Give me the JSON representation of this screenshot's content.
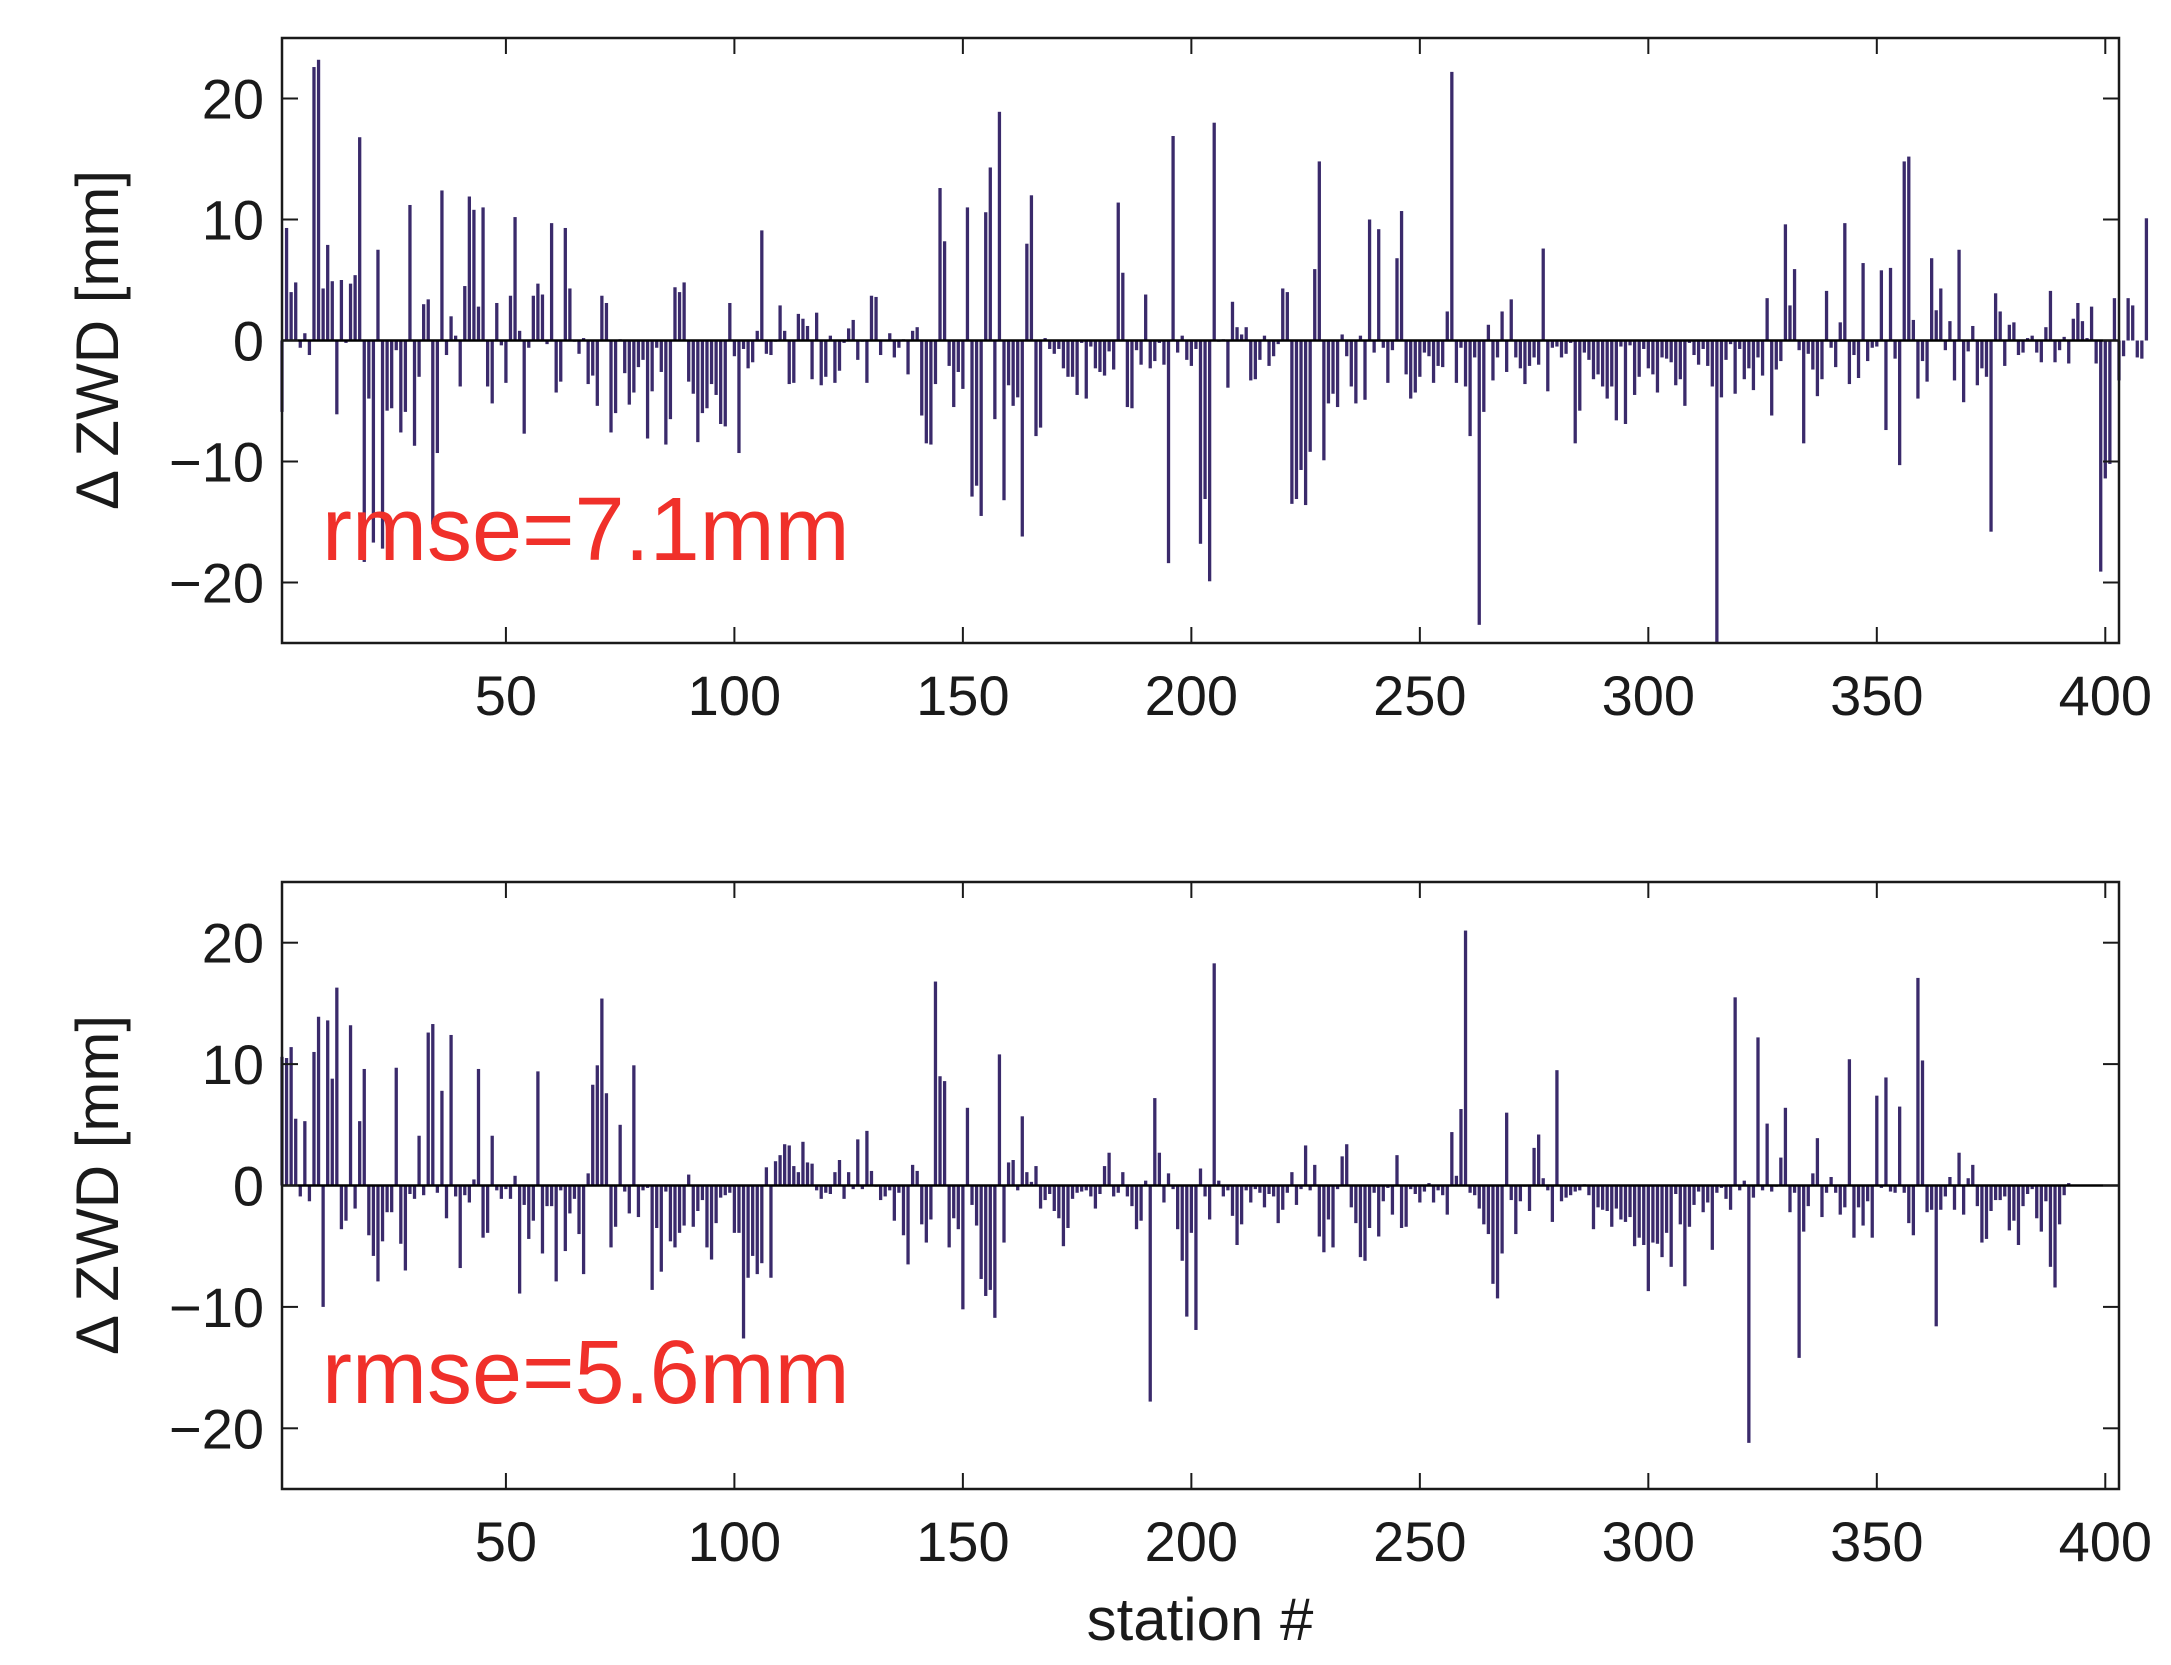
{
  "chart_data": [
    {
      "type": "bar",
      "panel": "top",
      "ylabel": "Δ ZWD [mm]",
      "xlabel": "",
      "xlim": [
        1,
        403
      ],
      "ylim": [
        -25,
        25
      ],
      "xticks": [
        50,
        100,
        150,
        200,
        250,
        300,
        350,
        400
      ],
      "yticks": [
        -20,
        -10,
        0,
        10,
        20
      ],
      "annotation": "rmse=7.1mm",
      "bar_color": "#3a2a6b",
      "annotation_color": "#f0302a",
      "x_start": 1,
      "values": [
        -5.9,
        9.3,
        4.0,
        4.8,
        -0.6,
        0.6,
        -1.2,
        22.6,
        23.2,
        4.3,
        7.9,
        4.9,
        -6.1,
        5.0,
        -0.2,
        4.7,
        5.4,
        16.8,
        -18.3,
        -4.8,
        -16.7,
        7.5,
        -17.2,
        -5.8,
        -5.6,
        -0.8,
        -7.6,
        -5.9,
        11.2,
        -8.7,
        -3.0,
        3.0,
        3.4,
        -15.2,
        -9.3,
        12.4,
        -1.2,
        2.0,
        0.4,
        -3.8,
        4.5,
        11.9,
        10.8,
        2.8,
        11.0,
        -3.8,
        -5.2,
        3.1,
        -0.4,
        -3.5,
        3.7,
        10.2,
        0.8,
        -7.7,
        -0.6,
        3.7,
        4.7,
        3.8,
        -0.3,
        9.7,
        -4.3,
        -3.4,
        9.3,
        4.3,
        -0.1,
        -1.1,
        0.2,
        -3.6,
        -2.9,
        -5.4,
        3.7,
        3.1,
        -7.6,
        -6.0,
        0.1,
        -2.7,
        -5.3,
        -4.3,
        -2.2,
        -1.6,
        -8.1,
        -4.2,
        -0.6,
        -2.6,
        -8.6,
        -6.5,
        4.4,
        4.0,
        4.8,
        -3.4,
        -4.4,
        -8.4,
        -6.0,
        -5.6,
        -3.6,
        -4.5,
        -6.9,
        -7.1,
        3.1,
        -1.3,
        -9.3,
        -0.7,
        -2.3,
        -1.8,
        0.8,
        9.1,
        -1.1,
        -1.2,
        -0.1,
        2.9,
        0.8,
        -3.6,
        -3.5,
        2.2,
        1.8,
        1.2,
        -3.2,
        2.3,
        -3.7,
        -3.0,
        0.4,
        -3.5,
        -2.5,
        -0.2,
        1.0,
        1.7,
        -1.6,
        -0.1,
        -3.5,
        3.7,
        3.6,
        -1.2,
        0.0,
        0.6,
        -1.4,
        -0.6,
        0.1,
        -2.8,
        0.8,
        1.1,
        -6.2,
        -8.5,
        -8.6,
        -3.6,
        12.6,
        8.2,
        -2.1,
        -5.5,
        -2.6,
        -4.0,
        11.0,
        -12.9,
        -12.0,
        -14.5,
        10.6,
        14.3,
        -6.5,
        18.9,
        -13.2,
        -3.7,
        -5.4,
        -4.7,
        -16.2,
        8.0,
        12.0,
        -7.9,
        -7.2,
        0.2,
        -0.7,
        -1.1,
        -0.7,
        -2.3,
        -3.0,
        -3.0,
        -4.5,
        -0.2,
        -4.8,
        -0.5,
        -2.3,
        -2.6,
        -2.9,
        -0.9,
        -2.4,
        11.4,
        5.6,
        -5.5,
        -5.6,
        -0.8,
        -2.0,
        3.8,
        -2.3,
        -1.7,
        -0.2,
        -2.0,
        -18.4,
        16.9,
        -1.0,
        0.4,
        -1.6,
        -2.1,
        -0.7,
        -16.8,
        -13.1,
        -19.9,
        18.0,
        -0.1,
        0.1,
        -3.9,
        3.2,
        1.1,
        0.5,
        1.1,
        -3.3,
        -3.2,
        -1.6,
        0.4,
        -2.1,
        -1.3,
        -0.3,
        4.3,
        4.0,
        -13.5,
        -13.1,
        -10.7,
        -13.6,
        -9.2,
        5.9,
        14.8,
        -9.9,
        -5.2,
        -4.4,
        -5.5,
        0.5,
        -1.3,
        -3.8,
        -5.2,
        0.4,
        -4.9,
        10.0,
        -1.0,
        9.2,
        -0.6,
        -3.5,
        -0.8,
        6.8,
        10.7,
        -2.8,
        -4.8,
        -4.3,
        -3.0,
        -1.0,
        -1.3,
        -3.5,
        -2.1,
        -2.2,
        2.4,
        22.2,
        -3.5,
        -0.6,
        -3.8,
        -7.9,
        -1.4,
        -23.5,
        -5.9,
        1.3,
        -3.3,
        -1.4,
        2.4,
        -2.6,
        3.4,
        -1.4,
        -2.3,
        -3.6,
        -2.1,
        -1.4,
        -2.0,
        7.6,
        -4.2,
        -0.6,
        -0.5,
        -1.4,
        -1.1,
        -0.2,
        -8.5,
        -5.8,
        -1.0,
        -1.6,
        -3.2,
        -2.8,
        -3.8,
        -4.8,
        -3.8,
        -6.6,
        -0.5,
        -6.9,
        -0.4,
        -4.5,
        -3.0,
        -0.7,
        -2.3,
        -2.8,
        -4.3,
        -1.4,
        -1.5,
        -1.8,
        -3.7,
        -3.2,
        -5.4,
        -0.2,
        -1.2,
        -2.0,
        -0.7,
        -2.1,
        -3.8,
        -26.2,
        -4.7,
        -1.6,
        -0.3,
        -4.4,
        -0.7,
        -3.2,
        -2.3,
        -4.1,
        -1.4,
        -2.9,
        3.5,
        -6.2,
        -2.4,
        -1.7,
        9.6,
        2.9,
        5.9,
        -0.8,
        -8.5,
        -1.1,
        -2.4,
        -4.6,
        -3.2,
        4.1,
        -0.6,
        -2.2,
        1.5,
        9.7,
        -3.6,
        -1.2,
        -3.1,
        6.4,
        -1.7,
        -0.6,
        -0.5,
        5.8,
        -7.4,
        6.0,
        -1.5,
        -10.3,
        14.8,
        15.2,
        1.7,
        -4.8,
        -1.7,
        -3.4,
        6.8,
        2.5,
        4.3,
        -0.8,
        1.6,
        -3.3,
        7.5,
        -5.1,
        -0.9,
        1.2,
        -3.7,
        -2.3,
        -3.0,
        -15.8,
        3.9,
        2.4,
        -2.1,
        1.3,
        1.5,
        -1.2,
        -1.0,
        0.2,
        0.4,
        -1.0,
        -1.8,
        1.1,
        4.1,
        -1.8,
        -0.8,
        0.3,
        -1.9,
        1.8,
        3.1,
        1.6,
        0.2,
        2.8,
        -1.9,
        -19.1,
        -11.4,
        -10.2,
        3.5,
        -3.3,
        -1.3,
        3.5,
        2.9,
        -1.4,
        -1.5,
        10.1
      ]
    },
    {
      "type": "bar",
      "panel": "bottom",
      "ylabel": "Δ ZWD [mm]",
      "xlabel": "station #",
      "xlim": [
        1,
        403
      ],
      "ylim": [
        -25,
        25
      ],
      "xticks": [
        50,
        100,
        150,
        200,
        250,
        300,
        350,
        400
      ],
      "yticks": [
        -20,
        -10,
        0,
        10,
        20
      ],
      "annotation": "rmse=5.6mm",
      "bar_color": "#3a2a6b",
      "annotation_color": "#f0302a",
      "x_start": 1,
      "values": [
        10.6,
        10.5,
        11.4,
        5.5,
        -0.9,
        5.3,
        -1.3,
        11.0,
        13.9,
        -10.0,
        13.6,
        8.8,
        16.3,
        -3.6,
        -2.9,
        13.2,
        -1.9,
        5.3,
        9.6,
        -4.1,
        -5.8,
        -7.9,
        -4.6,
        -2.2,
        -2.2,
        9.7,
        -4.8,
        -7.0,
        -0.7,
        -1.1,
        4.1,
        -0.8,
        12.6,
        13.3,
        -0.6,
        7.8,
        -2.7,
        12.4,
        -0.9,
        -6.8,
        -0.8,
        -1.4,
        0.5,
        9.6,
        -4.3,
        -3.9,
        4.1,
        -0.4,
        -1.1,
        -0.3,
        -1.1,
        0.8,
        -8.9,
        -1.6,
        -4.4,
        -2.9,
        9.4,
        -5.6,
        -1.7,
        -1.7,
        -7.9,
        -0.4,
        -5.4,
        -2.3,
        -1.1,
        -4.0,
        -7.3,
        1.0,
        8.3,
        9.9,
        15.4,
        7.6,
        -5.1,
        -3.4,
        5.0,
        -0.5,
        -2.3,
        9.9,
        -2.6,
        -0.4,
        -0.2,
        -8.6,
        -3.5,
        -7.1,
        -0.5,
        -4.6,
        -5.1,
        -3.9,
        -3.3,
        0.9,
        -3.4,
        -2.1,
        -1.2,
        -5.1,
        -6.1,
        -3.1,
        -1.0,
        -0.8,
        -0.6,
        -3.9,
        -3.9,
        -12.6,
        -7.6,
        -5.8,
        -7.3,
        -6.4,
        1.5,
        -7.6,
        2.0,
        2.5,
        3.4,
        3.3,
        1.6,
        1.1,
        3.6,
        1.9,
        1.8,
        -0.4,
        -1.1,
        -0.6,
        -0.7,
        1.1,
        2.1,
        -1.1,
        1.1,
        -0.3,
        3.8,
        -0.3,
        4.5,
        1.2,
        -0.1,
        -1.2,
        -0.9,
        -0.4,
        -2.9,
        -0.6,
        -4.1,
        -6.5,
        1.7,
        1.2,
        -3.2,
        -4.7,
        -2.8,
        16.8,
        9.0,
        8.6,
        -5.1,
        -2.7,
        -3.6,
        -10.2,
        6.4,
        -1.6,
        -3.3,
        -7.7,
        -9.1,
        -8.6,
        -10.9,
        10.8,
        -4.7,
        1.9,
        2.1,
        -0.4,
        5.7,
        1.1,
        0.3,
        1.6,
        -1.9,
        -1.2,
        -0.7,
        -2.1,
        -2.7,
        -5.0,
        -3.5,
        -1.1,
        -0.6,
        -0.5,
        -0.4,
        -0.9,
        -1.9,
        -0.7,
        1.6,
        2.7,
        -0.9,
        -0.6,
        1.1,
        -0.9,
        -1.7,
        -3.6,
        -2.9,
        0.4,
        -17.8,
        7.2,
        2.7,
        -1.4,
        1.0,
        -0.3,
        -3.6,
        -6.2,
        -10.8,
        -3.9,
        -11.9,
        1.4,
        -0.9,
        -2.8,
        18.3,
        0.4,
        -0.9,
        -0.4,
        -2.5,
        -4.9,
        -3.2,
        -0.4,
        -1.4,
        -0.3,
        -0.6,
        -1.8,
        -0.7,
        -0.9,
        -3.1,
        -2.0,
        -0.6,
        1.1,
        -1.6,
        -0.3,
        3.3,
        -0.4,
        1.7,
        -4.2,
        -5.5,
        -2.8,
        -5.1,
        -0.3,
        2.4,
        3.4,
        -1.8,
        -3.1,
        -5.9,
        -6.2,
        -3.5,
        -0.6,
        -4.2,
        -1.3,
        -0.2,
        -2.4,
        2.5,
        -3.5,
        -3.4,
        -0.3,
        -0.7,
        -1.4,
        -0.5,
        0.2,
        -1.4,
        -0.4,
        -0.8,
        -2.4,
        4.4,
        0.8,
        6.3,
        21.0,
        -0.6,
        -0.8,
        -1.9,
        -3.2,
        -4.0,
        -8.1,
        -9.3,
        -5.6,
        6.0,
        -1.2,
        -4.0,
        -1.3,
        -0.1,
        -2.1,
        3.1,
        4.2,
        0.6,
        -0.4,
        -3.0,
        9.5,
        -1.3,
        -1.0,
        -0.8,
        -0.5,
        -0.4,
        0.1,
        -0.8,
        -3.6,
        -1.8,
        -2.0,
        -2.1,
        -3.4,
        -1.9,
        -2.8,
        -3.0,
        -2.6,
        -5.0,
        -4.3,
        -4.9,
        -8.7,
        -4.7,
        -4.8,
        -5.9,
        -3.9,
        -6.7,
        -0.7,
        -3.2,
        -8.3,
        -3.4,
        -1.6,
        -0.5,
        -2.2,
        -1.4,
        -5.3,
        -0.6,
        -0.2,
        -1.1,
        -2.0,
        15.5,
        -0.4,
        0.4,
        -21.2,
        -1.0,
        12.2,
        -0.4,
        5.1,
        -0.5,
        -0.1,
        2.3,
        6.4,
        -2.2,
        -0.6,
        -14.2,
        -3.8,
        -1.7,
        1.0,
        3.9,
        -2.6,
        -0.6,
        0.7,
        -0.6,
        -2.4,
        -1.8,
        10.4,
        -4.3,
        -1.8,
        -3.3,
        -1.3,
        -4.3,
        7.4,
        -0.2,
        8.9,
        -0.5,
        -0.6,
        6.5,
        -0.6,
        -3.1,
        -4.1,
        17.1,
        10.3,
        -2.2,
        -2.0,
        -11.6,
        -2.0,
        -0.9,
        0.7,
        -2.0,
        2.7,
        -2.4,
        0.6,
        1.7,
        -1.7,
        -4.7,
        -4.4,
        -2.1,
        -1.2,
        -1.2,
        -0.9,
        -3.7,
        -2.9,
        -4.9,
        -1.7,
        -0.7,
        -0.3,
        -2.7,
        -3.8,
        -1.3,
        -6.7,
        -8.4,
        -3.2,
        -0.8,
        0.2
      ]
    }
  ]
}
